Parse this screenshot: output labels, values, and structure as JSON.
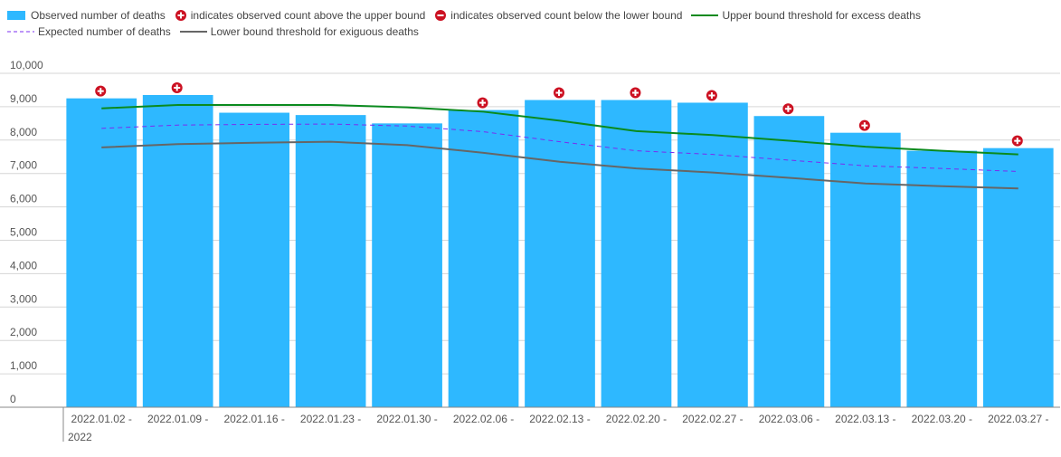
{
  "legend": {
    "observed": "Observed number of deaths",
    "above": "indicates observed count above the upper bound",
    "below": "indicates observed count below the lower bound",
    "upper": "Upper bound threshold for excess deaths",
    "expected": "Expected number of deaths",
    "lower": "Lower bound threshold for exiguous deaths"
  },
  "colors": {
    "bar": "#2eb8ff",
    "upper": "#0a8a1e",
    "expected": "#7b2cf0",
    "lower": "#666666",
    "marker": "#cc1122",
    "grid": "#d6d6d6",
    "axis": "#888888"
  },
  "chart_data": {
    "type": "bar",
    "categories": [
      "2022.01.02 -",
      "2022.01.09 -",
      "2022.01.16 -",
      "2022.01.23 -",
      "2022.01.30 -",
      "2022.02.06 -",
      "2022.02.13 -",
      "2022.02.20 -",
      "2022.02.27 -",
      "2022.03.06 -",
      "2022.03.13 -",
      "2022.03.20 -",
      "2022.03.27 -"
    ],
    "first_category_extra": "2022",
    "y_ticks": [
      "0",
      "1,000",
      "2,000",
      "3,000",
      "4,000",
      "5,000",
      "6,000",
      "7,000",
      "8,000",
      "9,000",
      "10,000"
    ],
    "ylim": [
      0,
      10000
    ],
    "grid": true,
    "legend_position": "top",
    "series": [
      {
        "name": "Observed number of deaths",
        "kind": "bar",
        "values": [
          9250,
          9350,
          8820,
          8750,
          8500,
          8900,
          9200,
          9200,
          9120,
          8720,
          8220,
          7680,
          7760
        ]
      },
      {
        "name": "Upper bound threshold for excess deaths",
        "kind": "line",
        "style": "solid",
        "values": [
          8950,
          9050,
          9050,
          9050,
          8980,
          8850,
          8580,
          8270,
          8150,
          7980,
          7800,
          7680,
          7570
        ]
      },
      {
        "name": "Expected number of deaths",
        "kind": "line",
        "style": "dashed",
        "values": [
          8350,
          8450,
          8470,
          8480,
          8420,
          8250,
          7950,
          7680,
          7570,
          7400,
          7230,
          7150,
          7060
        ]
      },
      {
        "name": "Lower bound threshold for exiguous deaths",
        "kind": "line",
        "style": "solid",
        "values": [
          7780,
          7880,
          7920,
          7950,
          7850,
          7620,
          7350,
          7150,
          7030,
          6870,
          6700,
          6620,
          6550
        ]
      }
    ],
    "above_upper_markers": [
      0,
      1,
      5,
      6,
      7,
      8,
      9,
      10,
      12
    ]
  }
}
